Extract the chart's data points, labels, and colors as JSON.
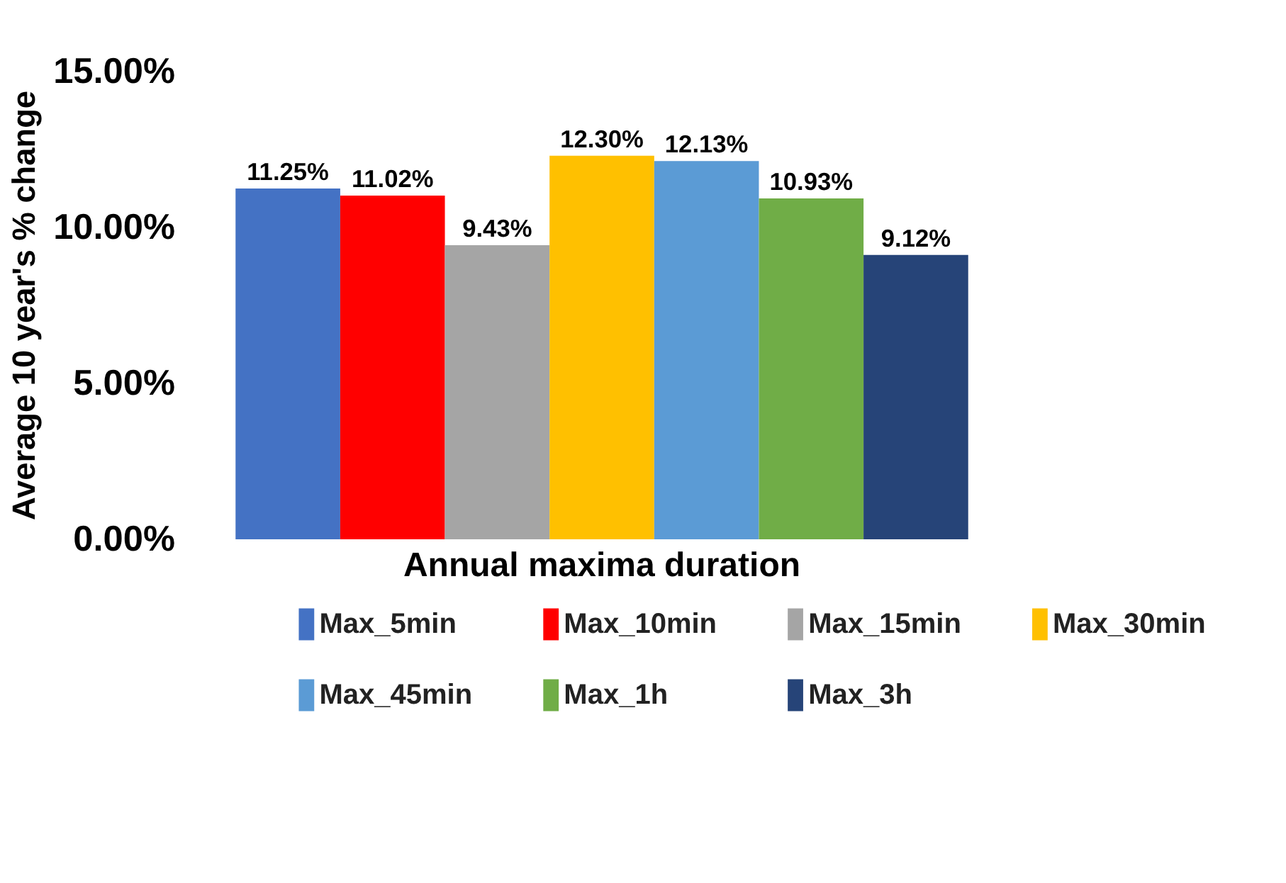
{
  "chart_data": {
    "type": "bar",
    "xlabel": "Annual maxima duration",
    "ylabel": "Average 10 year's % change",
    "categories": [
      null
    ],
    "ylim": [
      0,
      15
    ],
    "yticks": [
      {
        "value": 0,
        "label": "0.00%"
      },
      {
        "value": 5,
        "label": "5.00%"
      },
      {
        "value": 10,
        "label": "10.00%"
      },
      {
        "value": 15,
        "label": "15.00%"
      }
    ],
    "grid": false,
    "legend": "bottom",
    "series": [
      {
        "name": "Max_5min",
        "color": "#4472c4",
        "values": [
          11.25
        ],
        "value_labels": [
          "11.25%"
        ]
      },
      {
        "name": "Max_10min",
        "color": "#ff0000",
        "values": [
          11.02
        ],
        "value_labels": [
          "11.02%"
        ]
      },
      {
        "name": "Max_15min",
        "color": "#a5a5a5",
        "values": [
          9.43
        ],
        "value_labels": [
          "9.43%"
        ]
      },
      {
        "name": "Max_30min",
        "color": "#ffc000",
        "values": [
          12.3
        ],
        "value_labels": [
          "12.30%"
        ]
      },
      {
        "name": "Max_45min",
        "color": "#5b9bd5",
        "values": [
          12.13
        ],
        "value_labels": [
          "12.13%"
        ]
      },
      {
        "name": "Max_1h",
        "color": "#70ad47",
        "values": [
          10.93
        ],
        "value_labels": [
          "10.93%"
        ]
      },
      {
        "name": "Max_3h",
        "color": "#264478",
        "values": [
          9.12
        ],
        "value_labels": [
          "9.12%"
        ]
      }
    ]
  }
}
